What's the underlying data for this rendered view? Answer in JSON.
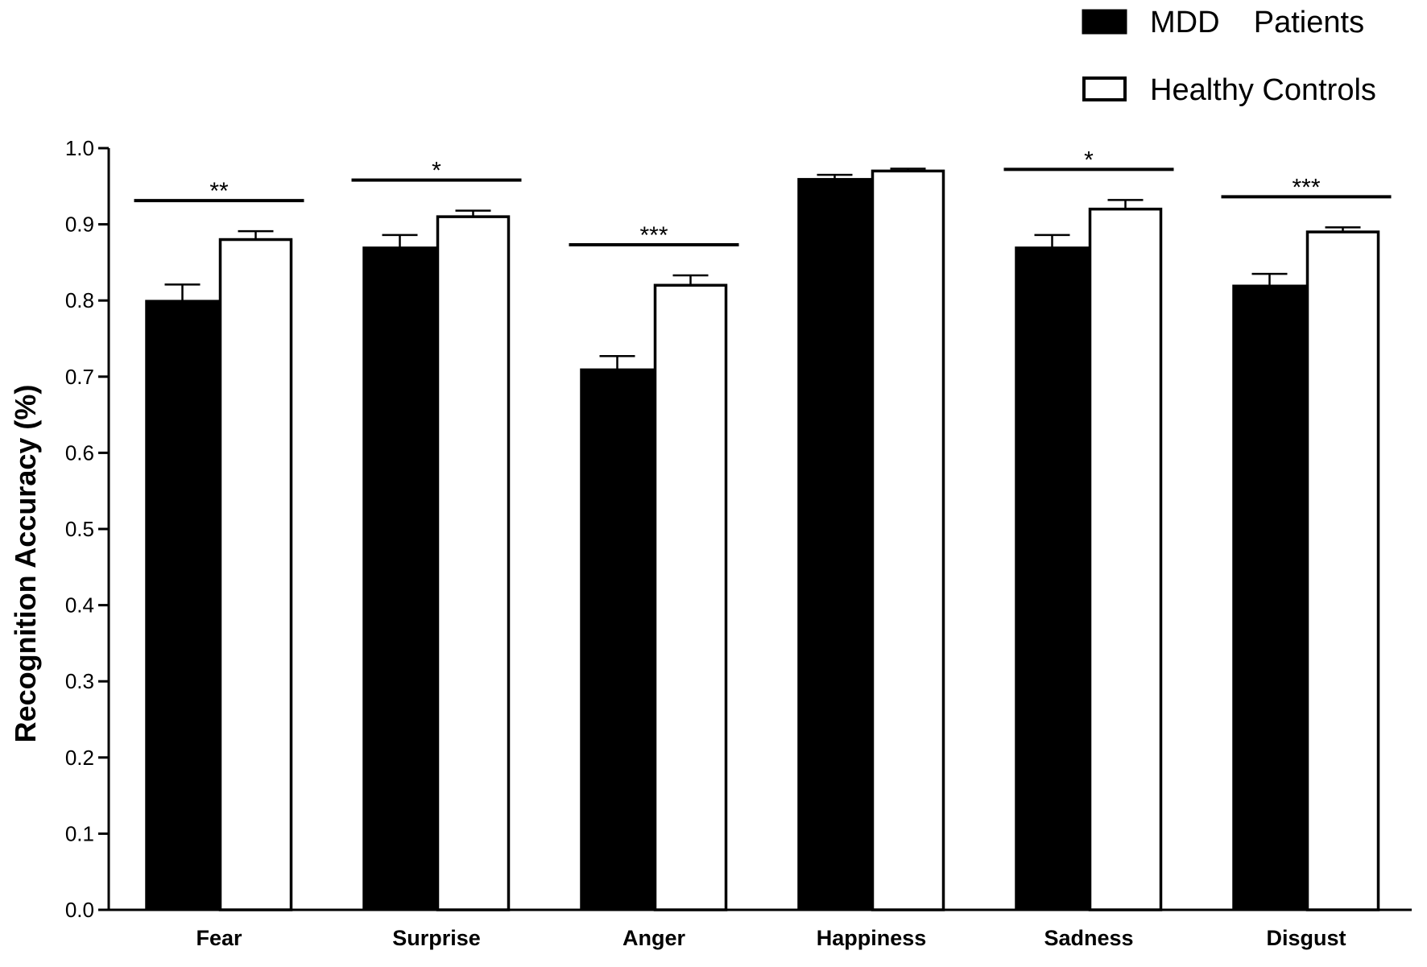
{
  "chart_data": {
    "type": "bar",
    "categories": [
      "Fear",
      "Surprise",
      "Anger",
      "Happiness",
      "Sadness",
      "Disgust"
    ],
    "series": [
      {
        "name": "MDD    Patients",
        "color": "#000000",
        "values": [
          0.8,
          0.87,
          0.71,
          0.96,
          0.87,
          0.82
        ],
        "errors": [
          0.021,
          0.016,
          0.017,
          0.005,
          0.016,
          0.015
        ]
      },
      {
        "name": "Healthy Controls",
        "color": "#ffffff",
        "values": [
          0.88,
          0.91,
          0.82,
          0.97,
          0.92,
          0.89
        ],
        "errors": [
          0.011,
          0.008,
          0.013,
          0.003,
          0.012,
          0.006
        ]
      }
    ],
    "significance": [
      "**",
      "*",
      "***",
      "",
      "*",
      "***"
    ],
    "ylabel": "Recognition Accuracy (%)",
    "xlabel": "",
    "ylim": [
      0,
      1.0
    ],
    "yticks": [
      "0.0",
      "0.1",
      "0.2",
      "0.3",
      "0.4",
      "0.5",
      "0.6",
      "0.7",
      "0.8",
      "0.9",
      "1.0"
    ],
    "grid": false,
    "legend_position": "top-right"
  }
}
